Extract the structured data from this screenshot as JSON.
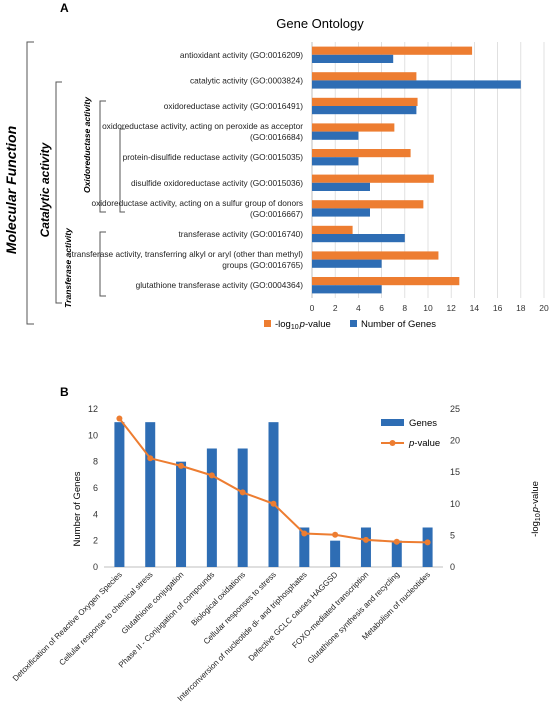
{
  "panel_a": {
    "label": "A",
    "group_labels": {
      "outer": "Molecular Function",
      "catalytic": "Catalytic activity",
      "oxidoreductase": "Oxidoreductase activity",
      "transferase": "Transferase activity"
    }
  },
  "panel_b": {
    "label": "B"
  },
  "colors": {
    "orange": "#ED7D31",
    "blue": "#2E6DB4",
    "grid": "#D9D9D9",
    "axis": "#BFBFBF"
  },
  "chart_data": [
    {
      "type": "bar",
      "orientation": "horizontal",
      "title": "Gene Ontology",
      "categories": [
        [
          "antioxidant activity (GO:0016209)"
        ],
        [
          "catalytic activity (GO:0003824)"
        ],
        [
          "oxidoreductase activity (GO:0016491)"
        ],
        [
          "oxidoreductase activity, acting on peroxide as acceptor",
          "(GO:0016684)"
        ],
        [
          "protein-disulfide reductase activity (GO:0015035)"
        ],
        [
          "disulfide oxidoreductase activity (GO:0015036)"
        ],
        [
          "oxidoreductase activity, acting on a sulfur group of donors",
          "(GO:0016667)"
        ],
        [
          "transferase activity (GO:0016740)"
        ],
        [
          "transferase activity, transferring alkyl or aryl (other than methyl)",
          "groups (GO:0016765)"
        ],
        [
          "glutathione transferase activity (GO:0004364)"
        ]
      ],
      "series": [
        {
          "name": "-log10 p-value",
          "color": "#ED7D31",
          "values": [
            13.8,
            9.0,
            9.1,
            7.1,
            8.5,
            10.5,
            9.6,
            3.5,
            10.9,
            12.7
          ]
        },
        {
          "name": "Number of Genes",
          "color": "#2E6DB4",
          "values": [
            7,
            18,
            9,
            4,
            4,
            5,
            5,
            8,
            6,
            6
          ]
        }
      ],
      "xlim": [
        0,
        20
      ],
      "xticks": [
        "0",
        "2",
        "4",
        "6",
        "8",
        "10",
        "12",
        "14",
        "16",
        "18",
        "20"
      ],
      "legend_position": "bottom",
      "legend": {
        "pvalue_prefix": "-log",
        "pvalue_sub": "10",
        "pvalue_italic": "p",
        "pvalue_suffix": "-value",
        "genes": "Number of Genes"
      },
      "grid": true
    },
    {
      "type": "bar+line",
      "categories": [
        "Detoxification of Reactive Oxygen Species",
        "Cellular response to chemical stress",
        "Glutathione conjugation",
        "Phase II - Conjugation of compounds",
        "Biological oxidations",
        "Cellular responses to stress",
        "Interconversion of nucleotide di- and triphosphates",
        "Defective GCLC causes HAGGSD",
        "FOXO-mediated transcription",
        "Glutathione synthesis and recycling",
        "Metabolism of nucleotides"
      ],
      "series": [
        {
          "name": "Genes",
          "type": "bar",
          "axis": "left",
          "color": "#2E6DB4",
          "values": [
            11,
            11,
            8,
            9,
            9,
            11,
            3,
            2,
            3,
            2,
            3
          ]
        },
        {
          "name": "p-value",
          "type": "line",
          "axis": "right",
          "color": "#ED7D31",
          "values": [
            23.5,
            17.2,
            16.0,
            14.5,
            11.8,
            10.0,
            5.3,
            5.1,
            4.3,
            4.0,
            3.9
          ]
        }
      ],
      "ylabel_left": "Number of Genes",
      "ylabel_right": {
        "prefix": "-log",
        "sub": "10",
        "italic": "p",
        "suffix": "-value"
      },
      "ylim_left": [
        0,
        12
      ],
      "ylim_right": [
        0,
        25
      ],
      "yticks_left": [
        "0",
        "2",
        "4",
        "6",
        "8",
        "10",
        "12"
      ],
      "yticks_right": [
        "0",
        "5",
        "10",
        "15",
        "20",
        "25"
      ],
      "legend_position": "top-right",
      "legend": {
        "genes": "Genes",
        "pvalue_italic": "p",
        "pvalue_suffix": "-value"
      },
      "grid": false
    }
  ]
}
